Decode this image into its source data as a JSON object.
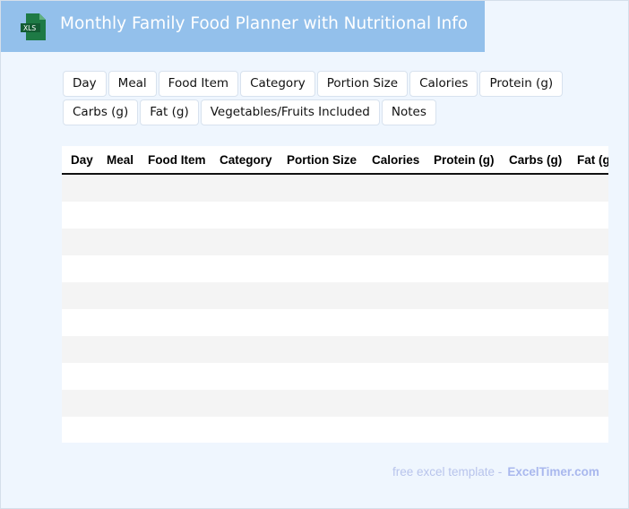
{
  "header": {
    "title": "Monthly Family Food Planner with Nutritional Info",
    "icon": "xls-file-icon",
    "icon_label": "XLS",
    "color": "#93c0eb"
  },
  "chips": [
    "Day",
    "Meal",
    "Food Item",
    "Category",
    "Portion Size",
    "Calories",
    "Protein (g)",
    "Carbs (g)",
    "Fat (g)",
    "Vegetables/Fruits Included",
    "Notes"
  ],
  "table": {
    "columns": [
      "Day",
      "Meal",
      "Food Item",
      "Category",
      "Portion Size",
      "Calories",
      "Protein (g)",
      "Carbs (g)",
      "Fat (g)"
    ],
    "row_count": 10
  },
  "footer": {
    "text": "free excel template -",
    "brand": "ExcelTimer.com"
  }
}
